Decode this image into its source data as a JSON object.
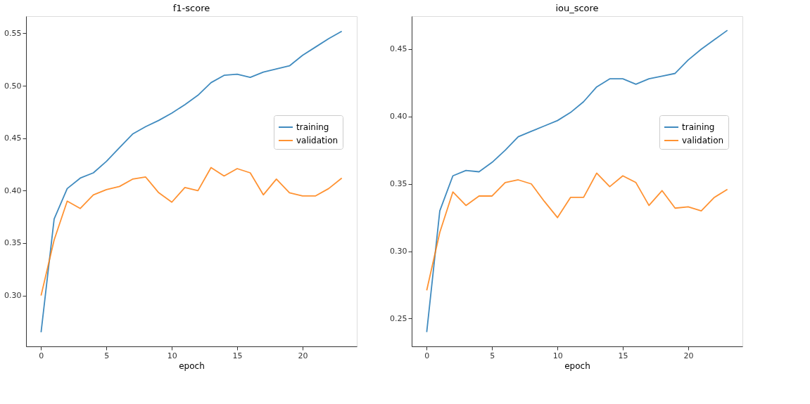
{
  "chart_data": [
    {
      "type": "line",
      "title": "f1-score",
      "xlabel": "epoch",
      "x": [
        0,
        1,
        2,
        3,
        4,
        5,
        6,
        7,
        8,
        9,
        10,
        11,
        12,
        13,
        14,
        15,
        16,
        17,
        18,
        19,
        20,
        21,
        22,
        23
      ],
      "xlim": [
        -1.15,
        24.15
      ],
      "xticks": [
        0,
        5,
        10,
        15,
        20
      ],
      "ylim": [
        0.2515,
        0.5664
      ],
      "yticks": [
        {
          "value": 0.3,
          "label": "0.30"
        },
        0.35,
        {
          "value": 0.4,
          "label": "0.40"
        },
        0.45,
        {
          "value": 0.5,
          "label": "0.50"
        },
        0.55
      ],
      "grid": false,
      "legend": "right",
      "marker": "none",
      "line_style": "solid",
      "series": [
        {
          "name": "training",
          "color": "#1f77b4",
          "values": [
            0.265,
            0.373,
            0.402,
            0.412,
            0.417,
            0.428,
            0.441,
            0.454,
            0.461,
            0.467,
            0.474,
            0.482,
            0.491,
            0.503,
            0.51,
            0.511,
            0.508,
            0.513,
            0.516,
            0.519,
            0.529,
            0.537,
            0.545,
            0.552
          ]
        },
        {
          "name": "validation",
          "color": "#ff7f0e",
          "values": [
            0.3,
            0.353,
            0.39,
            0.383,
            0.396,
            0.401,
            0.404,
            0.411,
            0.413,
            0.398,
            0.389,
            0.403,
            0.4,
            0.422,
            0.414,
            0.421,
            0.417,
            0.396,
            0.411,
            0.398,
            0.395,
            0.395,
            0.402,
            0.412
          ]
        }
      ]
    },
    {
      "type": "line",
      "title": "iou_score",
      "xlabel": "epoch",
      "x": [
        0,
        1,
        2,
        3,
        4,
        5,
        6,
        7,
        8,
        9,
        10,
        11,
        12,
        13,
        14,
        15,
        16,
        17,
        18,
        19,
        20,
        21,
        22,
        23
      ],
      "xlim": [
        -1.15,
        24.15
      ],
      "xticks": [
        0,
        5,
        10,
        15,
        20
      ],
      "ylim": [
        0.2294,
        0.4745
      ],
      "yticks": [
        0.25,
        {
          "value": 0.3,
          "label": "0.30"
        },
        0.35,
        {
          "value": 0.4,
          "label": "0.40"
        },
        0.45
      ],
      "grid": false,
      "legend": "right",
      "marker": "none",
      "line_style": "solid",
      "series": [
        {
          "name": "training",
          "color": "#1f77b4",
          "values": [
            0.24,
            0.33,
            0.356,
            0.36,
            0.359,
            0.366,
            0.375,
            0.385,
            0.389,
            0.393,
            0.397,
            0.403,
            0.411,
            0.422,
            0.428,
            0.428,
            0.424,
            0.428,
            0.43,
            0.432,
            0.442,
            0.45,
            0.457,
            0.464
          ]
        },
        {
          "name": "validation",
          "color": "#ff7f0e",
          "values": [
            0.271,
            0.314,
            0.344,
            0.334,
            0.341,
            0.341,
            0.351,
            0.353,
            0.35,
            0.337,
            0.325,
            0.34,
            0.34,
            0.358,
            0.348,
            0.356,
            0.351,
            0.334,
            0.345,
            0.332,
            0.333,
            0.33,
            0.34,
            0.346
          ]
        }
      ]
    }
  ]
}
